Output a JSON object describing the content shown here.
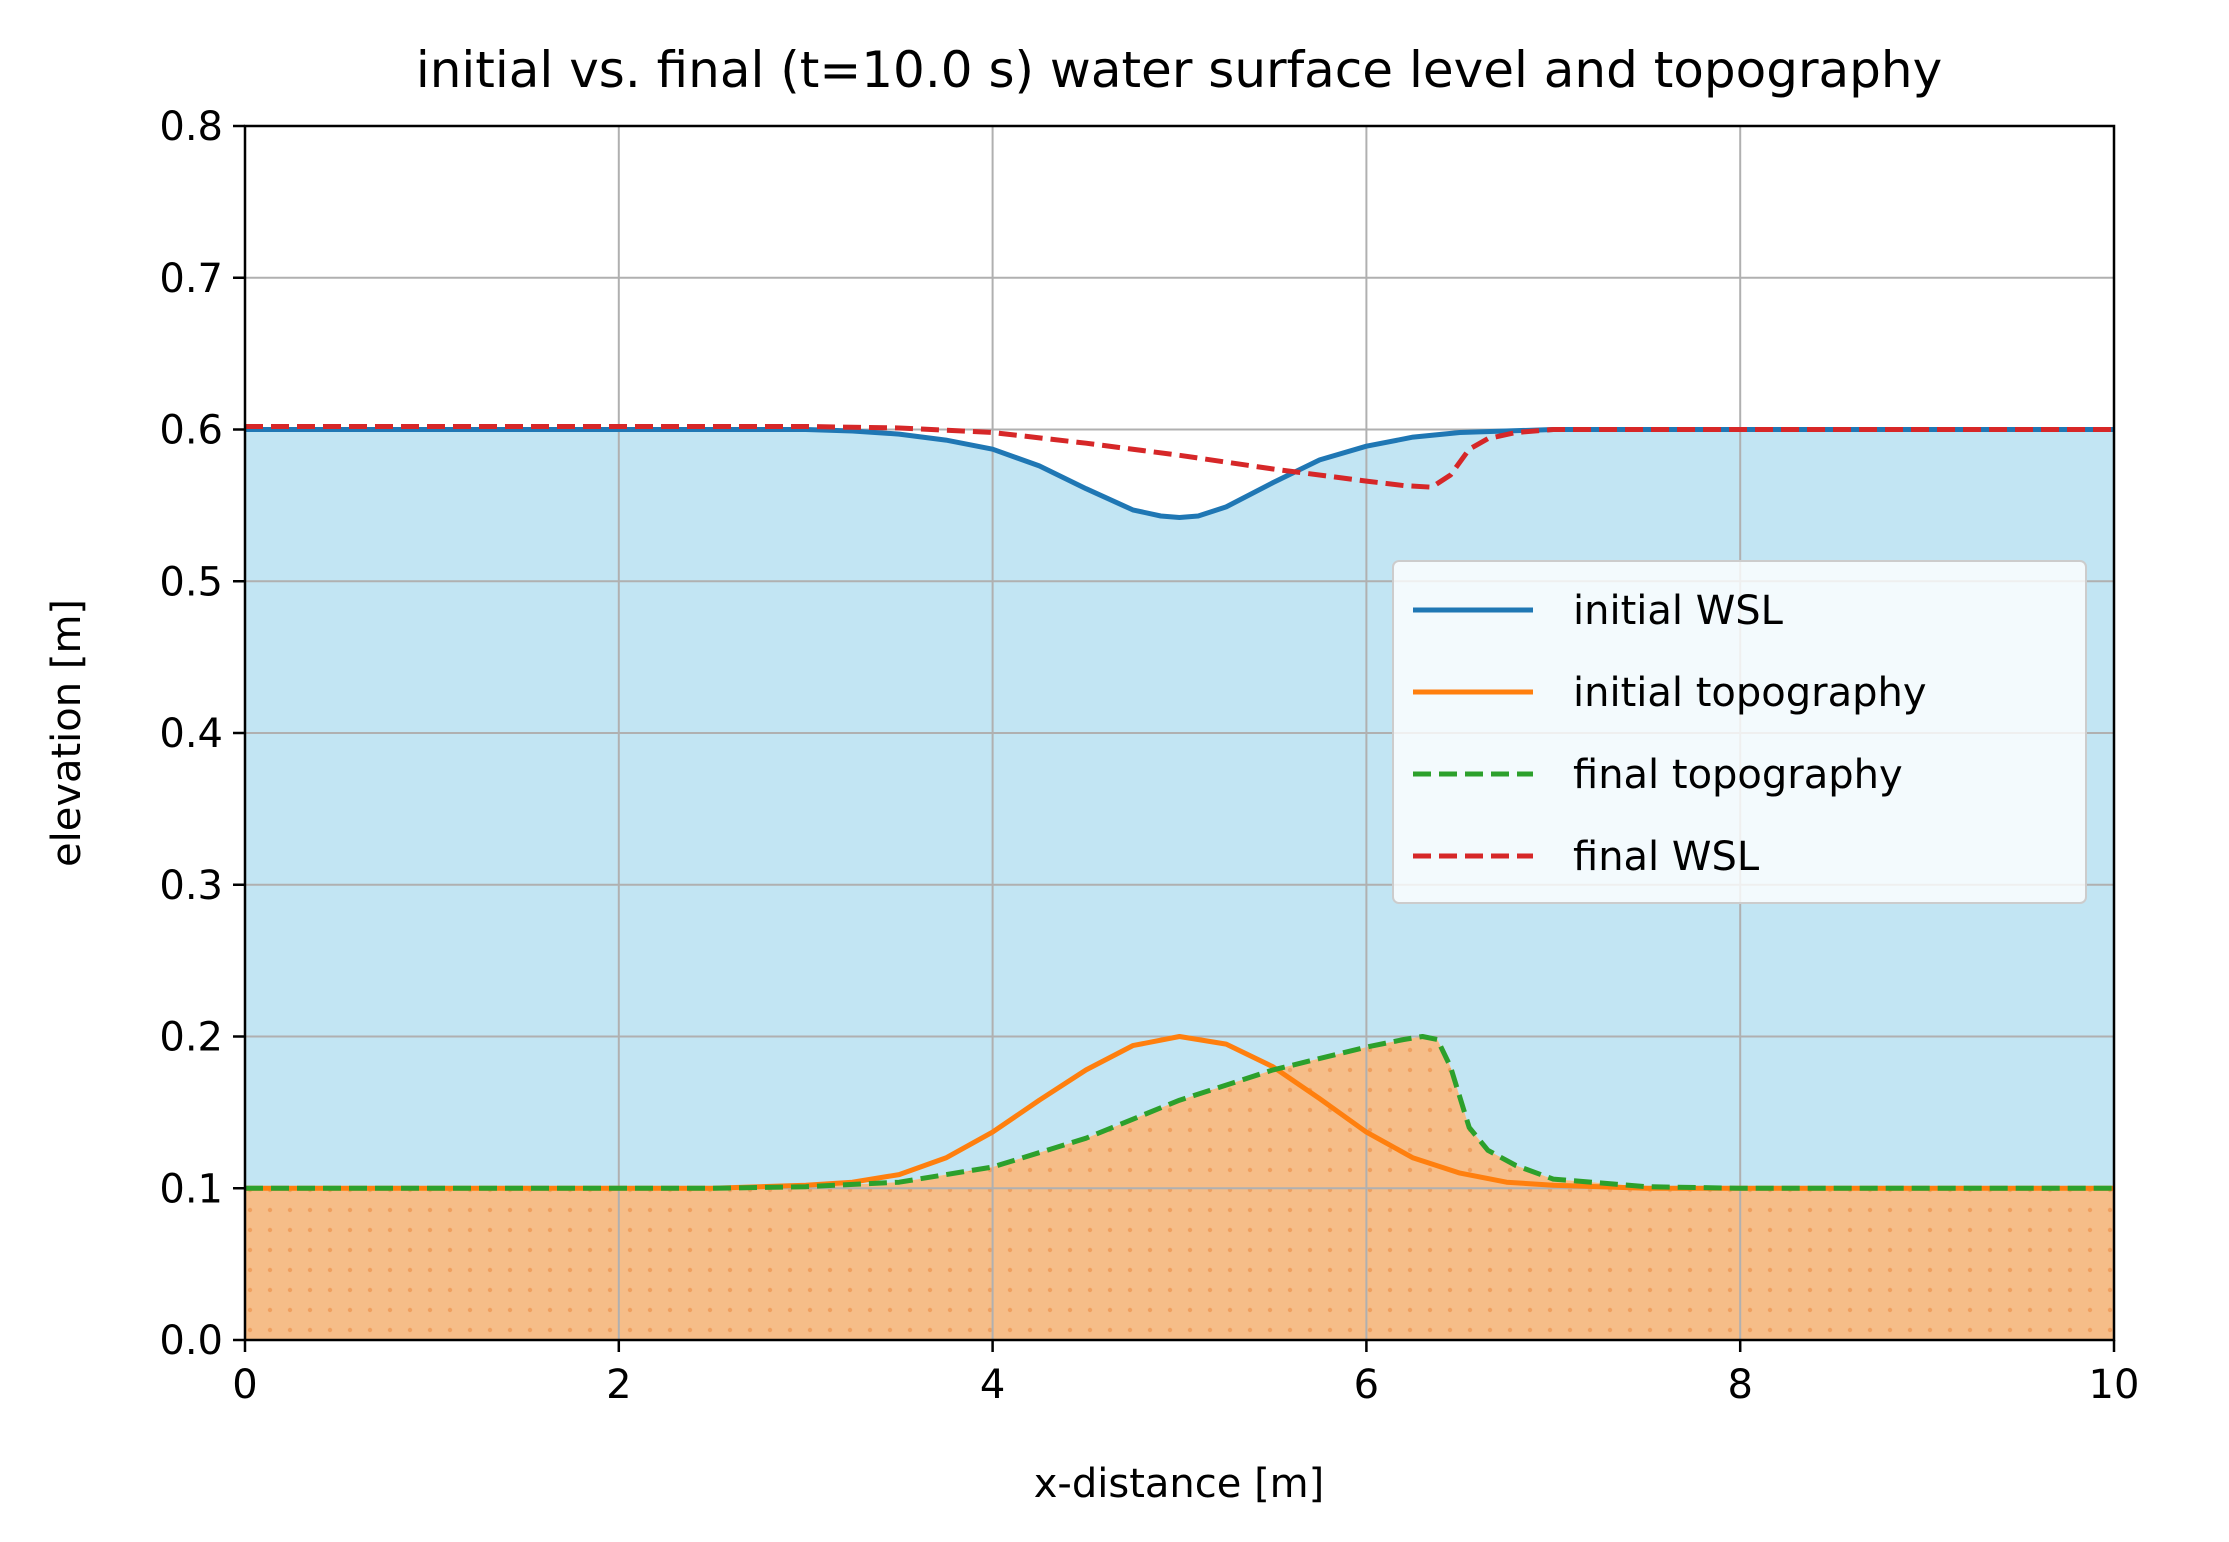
{
  "chart_data": {
    "type": "line",
    "title": "initial vs. final (t=10.0 s) water surface level and topography",
    "xlabel": "x-distance [m]",
    "ylabel": "elevation [m]",
    "xlim": [
      0,
      10
    ],
    "ylim": [
      0,
      0.8
    ],
    "xticks": [
      0,
      2,
      4,
      6,
      8,
      10
    ],
    "xtick_labels": [
      "0",
      "2",
      "4",
      "6",
      "8",
      "10"
    ],
    "yticks": [
      0.0,
      0.1,
      0.2,
      0.3,
      0.4,
      0.5,
      0.6,
      0.7,
      0.8
    ],
    "ytick_labels": [
      "0.0",
      "0.1",
      "0.2",
      "0.3",
      "0.4",
      "0.5",
      "0.6",
      "0.7",
      "0.8"
    ],
    "grid": true,
    "legend_position": "center-right",
    "fills": {
      "water_color": "#c2e5f3",
      "sediment_color": "#f6bd88",
      "sediment_dot_color": "#f0a060"
    },
    "series": [
      {
        "name": "initial WSL",
        "color": "#1f77b4",
        "style": "solid",
        "x": [
          0,
          1,
          2,
          2.5,
          3,
          3.25,
          3.5,
          3.75,
          4,
          4.25,
          4.5,
          4.75,
          4.9,
          5,
          5.1,
          5.25,
          5.5,
          5.75,
          6,
          6.25,
          6.5,
          7,
          8,
          9,
          10
        ],
        "y": [
          0.6,
          0.6,
          0.6,
          0.6,
          0.6,
          0.599,
          0.597,
          0.593,
          0.587,
          0.576,
          0.561,
          0.547,
          0.543,
          0.542,
          0.543,
          0.549,
          0.565,
          0.58,
          0.589,
          0.595,
          0.598,
          0.6,
          0.6,
          0.6,
          0.6
        ]
      },
      {
        "name": "initial topography",
        "color": "#ff7f0e",
        "style": "solid",
        "x": [
          0,
          1,
          2,
          2.5,
          3,
          3.25,
          3.5,
          3.75,
          4,
          4.25,
          4.5,
          4.75,
          5,
          5.25,
          5.5,
          5.75,
          6,
          6.25,
          6.5,
          6.75,
          7,
          7.5,
          8,
          9,
          10
        ],
        "y": [
          0.1,
          0.1,
          0.1,
          0.1,
          0.102,
          0.104,
          0.109,
          0.12,
          0.137,
          0.158,
          0.178,
          0.194,
          0.2,
          0.195,
          0.18,
          0.159,
          0.137,
          0.12,
          0.11,
          0.104,
          0.102,
          0.1,
          0.1,
          0.1,
          0.1
        ]
      },
      {
        "name": "final topography",
        "color": "#2ca02c",
        "style": "dashed",
        "x": [
          0,
          1,
          2,
          2.5,
          3,
          3.5,
          4,
          4.5,
          5,
          5.5,
          6,
          6.2,
          6.3,
          6.38,
          6.45,
          6.55,
          6.65,
          6.8,
          7,
          7.5,
          8,
          9,
          10
        ],
        "y": [
          0.1,
          0.1,
          0.1,
          0.1,
          0.101,
          0.104,
          0.114,
          0.133,
          0.158,
          0.178,
          0.193,
          0.198,
          0.2,
          0.198,
          0.18,
          0.14,
          0.125,
          0.115,
          0.106,
          0.101,
          0.1,
          0.1,
          0.1
        ]
      },
      {
        "name": "final WSL",
        "color": "#d62728",
        "style": "dashed",
        "x": [
          0,
          1,
          2,
          3,
          3.5,
          4,
          4.5,
          5,
          5.5,
          6,
          6.2,
          6.35,
          6.45,
          6.55,
          6.65,
          6.8,
          7,
          7.5,
          8,
          9,
          10
        ],
        "y": [
          0.602,
          0.602,
          0.602,
          0.602,
          0.601,
          0.598,
          0.591,
          0.583,
          0.574,
          0.566,
          0.563,
          0.562,
          0.57,
          0.587,
          0.594,
          0.598,
          0.6,
          0.6,
          0.6,
          0.6,
          0.6
        ]
      }
    ]
  }
}
